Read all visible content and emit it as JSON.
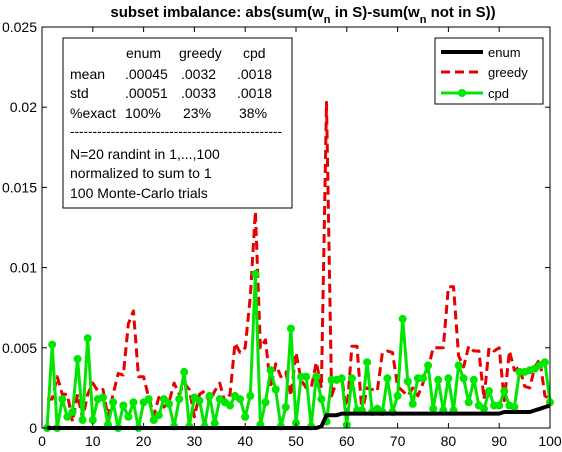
{
  "chart_data": {
    "type": "line",
    "title": "subset imbalance: abs(sum(w_n in S)-sum(w_n not in S))",
    "title_parts": {
      "a": "subset imbalance: abs(sum(w",
      "sub1": "n",
      "b": " in S)-sum(w",
      "sub2": "n",
      "c": " not in S))"
    },
    "xlim": [
      0,
      100
    ],
    "ylim": [
      0,
      0.025
    ],
    "xticks": [
      "0",
      "10",
      "20",
      "30",
      "40",
      "50",
      "60",
      "70",
      "80",
      "90",
      "100"
    ],
    "yticks": [
      "0",
      "0.005",
      "0.01",
      "0.015",
      "0.02",
      "0.025"
    ],
    "legend_position": "top-right",
    "grid": false,
    "series": [
      {
        "name": "enum",
        "color": "#000000",
        "style": "solid",
        "x": [
          1,
          2,
          3,
          4,
          5,
          6,
          7,
          8,
          9,
          10,
          11,
          12,
          13,
          14,
          15,
          16,
          17,
          18,
          19,
          20,
          21,
          22,
          23,
          24,
          25,
          26,
          27,
          28,
          29,
          30,
          31,
          32,
          33,
          34,
          35,
          36,
          37,
          38,
          39,
          40,
          41,
          42,
          43,
          44,
          45,
          46,
          47,
          48,
          49,
          50,
          51,
          52,
          53,
          54,
          55,
          56,
          57,
          58,
          59,
          60,
          61,
          62,
          63,
          64,
          65,
          66,
          67,
          68,
          69,
          70,
          71,
          72,
          73,
          74,
          75,
          76,
          77,
          78,
          79,
          80,
          81,
          82,
          83,
          84,
          85,
          86,
          87,
          88,
          89,
          90,
          91,
          92,
          93,
          94,
          95,
          96,
          97,
          98,
          99,
          100
        ],
        "values": [
          0,
          0,
          0,
          0,
          0,
          0,
          0,
          0,
          0,
          0,
          0,
          0,
          0,
          0,
          0,
          0,
          0,
          0,
          0,
          0,
          0,
          0,
          0,
          0,
          0,
          0,
          0,
          0,
          0,
          0,
          0,
          0,
          0,
          0,
          0,
          0,
          0,
          0,
          0,
          0,
          0,
          0,
          0,
          0,
          0,
          0,
          0,
          0,
          0,
          0,
          0,
          0,
          0,
          0,
          0.0001,
          0.0008,
          0.0008,
          0.0008,
          0.0009,
          0.0009,
          0.0009,
          0.0009,
          0.0009,
          0.0009,
          0.0009,
          0.0009,
          0.0009,
          0.0009,
          0.0009,
          0.0009,
          0.0009,
          0.0009,
          0.0009,
          0.0009,
          0.0009,
          0.0009,
          0.0009,
          0.0009,
          0.0009,
          0.0009,
          0.0009,
          0.0009,
          0.0009,
          0.0009,
          0.0009,
          0.0009,
          0.0009,
          0.0009,
          0.0009,
          0.0009,
          0.001,
          0.001,
          0.001,
          0.001,
          0.001,
          0.001,
          0.0011,
          0.0012,
          0.0013,
          0.0014
        ]
      },
      {
        "name": "greedy",
        "color": "#e60000",
        "style": "dashed",
        "x": [
          1,
          2,
          3,
          4,
          5,
          6,
          7,
          8,
          9,
          10,
          11,
          12,
          13,
          14,
          15,
          16,
          17,
          18,
          19,
          20,
          21,
          22,
          23,
          24,
          25,
          26,
          27,
          28,
          29,
          30,
          31,
          32,
          33,
          34,
          35,
          36,
          37,
          38,
          39,
          40,
          41,
          42,
          43,
          44,
          45,
          46,
          47,
          48,
          49,
          50,
          51,
          52,
          53,
          54,
          55,
          56,
          57,
          58,
          59,
          60,
          61,
          62,
          63,
          64,
          65,
          66,
          67,
          68,
          69,
          70,
          71,
          72,
          73,
          74,
          75,
          76,
          77,
          78,
          79,
          80,
          81,
          82,
          83,
          84,
          85,
          86,
          87,
          88,
          89,
          90,
          91,
          92,
          93,
          94,
          95,
          96,
          97,
          98,
          99,
          100
        ],
        "values": [
          0.0018,
          0.0018,
          0.0032,
          0.0021,
          0.0021,
          0.0004,
          0.0021,
          0.0006,
          0.0021,
          0.0028,
          0.0023,
          0.0024,
          0.0007,
          0.0021,
          0.0034,
          0.0033,
          0.0065,
          0.0073,
          0.0032,
          0.0032,
          0.0019,
          0.0008,
          0.0019,
          0.0013,
          0.0016,
          0.0028,
          0.0021,
          0.0028,
          0.0024,
          0.0007,
          0.0021,
          0.0023,
          0.0016,
          0.0023,
          0.0028,
          0.0016,
          0.0021,
          0.0053,
          0.0047,
          0.005,
          0.0082,
          0.0135,
          0.005,
          0.0055,
          0.0025,
          0.004,
          0.0032,
          0.0035,
          0.002,
          0.0047,
          0.003,
          0.0025,
          0.0025,
          0.0041,
          0.0025,
          0.0203,
          0.002,
          0.0029,
          0.0032,
          0.0009,
          0.0051,
          0.0051,
          0.0009,
          0.0025,
          0.0024,
          0.0023,
          0.0047,
          0.0048,
          0.0047,
          0.0026,
          0.0023,
          0.002,
          0.0025,
          0.002,
          0.0028,
          0.0037,
          0.005,
          0.005,
          0.005,
          0.0088,
          0.0088,
          0.0045,
          0.0038,
          0.0051,
          0.0048,
          0.0048,
          0.0018,
          0.005,
          0.0048,
          0.005,
          0.0017,
          0.0048,
          0.0036,
          0.0038,
          0.0026,
          0.0025,
          0.0038,
          0.0043,
          0.002,
          0.0018
        ]
      },
      {
        "name": "cpd",
        "color": "#00e600",
        "style": "solid-marker",
        "x": [
          1,
          2,
          3,
          4,
          5,
          6,
          7,
          8,
          9,
          10,
          11,
          12,
          13,
          14,
          15,
          16,
          17,
          18,
          19,
          20,
          21,
          22,
          23,
          24,
          25,
          26,
          27,
          28,
          29,
          30,
          31,
          32,
          33,
          34,
          35,
          36,
          37,
          38,
          39,
          40,
          41,
          42,
          43,
          44,
          45,
          46,
          47,
          48,
          49,
          50,
          51,
          52,
          53,
          54,
          55,
          56,
          57,
          58,
          59,
          60,
          61,
          62,
          63,
          64,
          65,
          66,
          67,
          68,
          69,
          70,
          71,
          72,
          73,
          74,
          75,
          76,
          77,
          78,
          79,
          80,
          81,
          82,
          83,
          84,
          85,
          86,
          87,
          88,
          89,
          90,
          91,
          92,
          93,
          94,
          95,
          96,
          97,
          98,
          99,
          100
        ],
        "values": [
          0,
          0.0052,
          0,
          0.0018,
          0.0007,
          0.001,
          0.0043,
          0.0005,
          0.0056,
          0.0005,
          0.0018,
          0.0019,
          0.0002,
          0.0016,
          0,
          0.0014,
          0.0007,
          0.0016,
          0,
          0.0016,
          0.0018,
          0.0005,
          0.0008,
          0.0018,
          0.0015,
          0.0001,
          0.0018,
          0.0035,
          0.0001,
          0.0019,
          0.0017,
          0.0001,
          0.002,
          0.0003,
          0.0018,
          0.0016,
          0.0014,
          0.002,
          0.0018,
          0.0007,
          0.002,
          0.0096,
          0.0002,
          0.0016,
          0.0036,
          0.0024,
          0.0001,
          0.0013,
          0.0062,
          0.0003,
          0.0032,
          0.0032,
          0.0001,
          0.0032,
          0.0018,
          0.0004,
          0.003,
          0.003,
          0.0031,
          0.0002,
          0.0031,
          0.0011,
          0.0011,
          0.0041,
          0.001,
          0.0012,
          0.001,
          0.0031,
          0.001,
          0.002,
          0.0068,
          0.0029,
          0.0015,
          0.0031,
          0.0031,
          0.0039,
          0.0012,
          0.003,
          0.0011,
          0.0031,
          0.0011,
          0.0039,
          0.0031,
          0.0016,
          0.003,
          0.0014,
          0.0012,
          0.0023,
          0.0014,
          0.0014,
          0.0023,
          0.0014,
          0.0013,
          0.0035,
          0.0035,
          0.0036,
          0.0037,
          0.0039,
          0.0041,
          0.0016
        ]
      }
    ]
  },
  "info_box": {
    "rows": [
      [
        "",
        "enum",
        "greedy",
        "cpd"
      ],
      [
        "mean",
        ".00045",
        ".0032",
        ".0018"
      ],
      [
        "std",
        ".00051",
        ".0033",
        ".0018"
      ],
      [
        "%exact",
        "100%",
        "23%",
        "38%"
      ]
    ],
    "separator": "-----------------------------------------------",
    "notes": [
      "N=20 randint in 1,...,100",
      "normalized to sum to 1",
      "100 Monte-Carlo trials"
    ]
  }
}
